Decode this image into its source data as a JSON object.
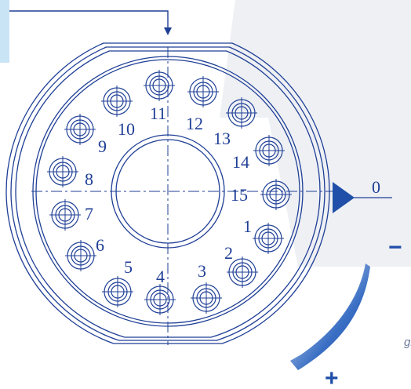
{
  "diagram": {
    "zero_label": "0",
    "minus_label": "−",
    "plus_label": "+",
    "caption": "giro",
    "colors": {
      "line": "#1f3f96",
      "arrow": "#1f4fa8",
      "panel": "#c9e4f5",
      "background_shape": "#eef0f4"
    },
    "positions": [
      {
        "label": "1"
      },
      {
        "label": "2"
      },
      {
        "label": "3"
      },
      {
        "label": "4"
      },
      {
        "label": "5"
      },
      {
        "label": "6"
      },
      {
        "label": "7"
      },
      {
        "label": "8"
      },
      {
        "label": "9"
      },
      {
        "label": "10"
      },
      {
        "label": "11"
      },
      {
        "label": "12"
      },
      {
        "label": "13"
      },
      {
        "label": "14"
      },
      {
        "label": "15"
      }
    ]
  }
}
